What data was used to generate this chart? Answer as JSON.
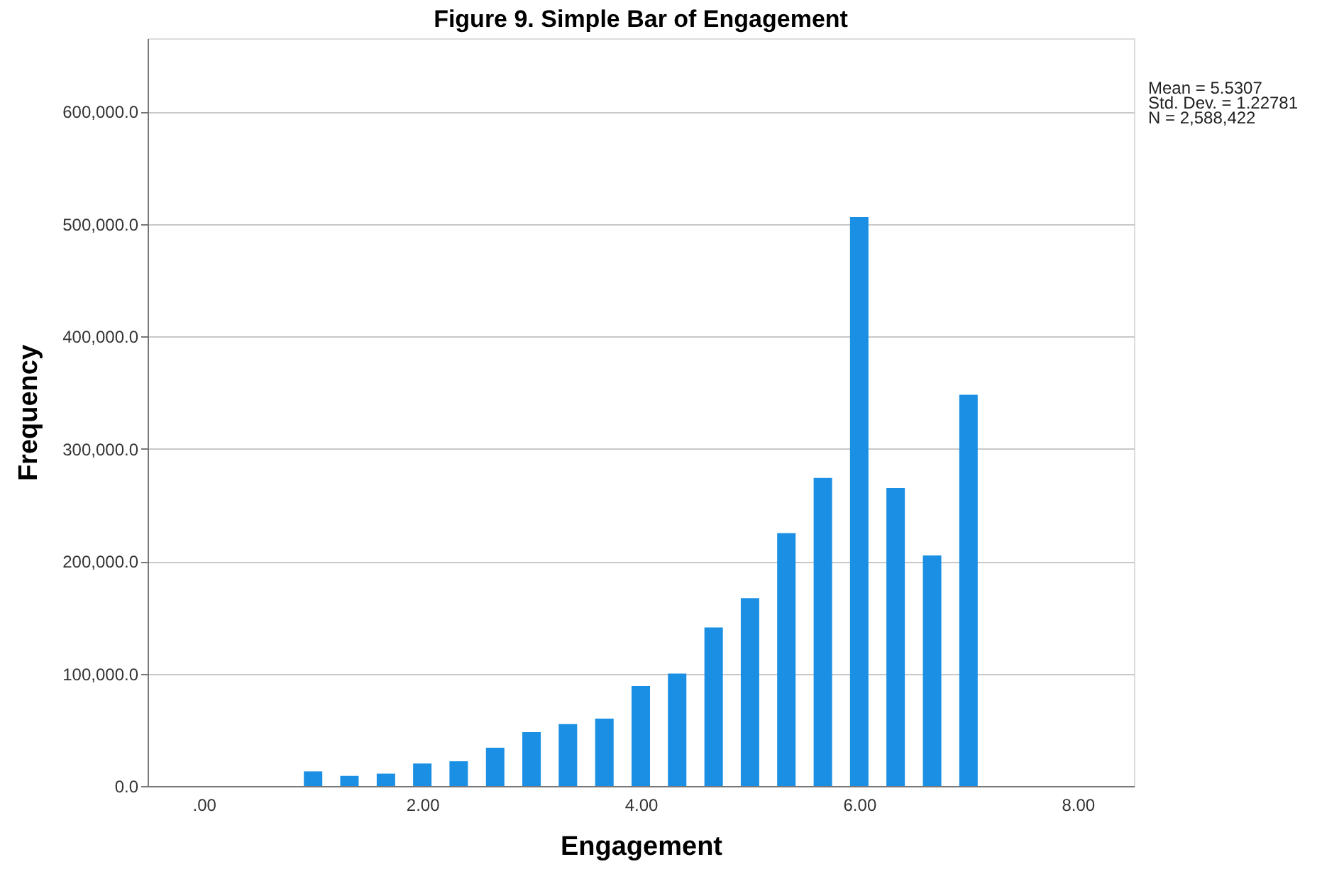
{
  "chart_data": {
    "type": "bar",
    "title": "Figure 9.  Simple Bar of Engagement",
    "xlabel": "Engagement",
    "ylabel": "Frequency",
    "x": [
      1.0,
      1.333,
      1.667,
      2.0,
      2.333,
      2.667,
      3.0,
      3.333,
      3.667,
      4.0,
      4.333,
      4.667,
      5.0,
      5.333,
      5.667,
      6.0,
      6.333,
      6.667,
      7.0
    ],
    "values": [
      13000,
      9000,
      11000,
      20000,
      22000,
      34000,
      48000,
      55000,
      60000,
      89000,
      100000,
      141000,
      167000,
      225000,
      274000,
      506000,
      265000,
      205000,
      348000
    ],
    "color": "#1a8fe3",
    "xlim": [
      -0.45,
      8.45
    ],
    "xticks": [
      {
        "value": 0,
        "label": ".00"
      },
      {
        "value": 2,
        "label": "2.00"
      },
      {
        "value": 4,
        "label": "4.00"
      },
      {
        "value": 6,
        "label": "6.00"
      },
      {
        "value": 8,
        "label": "8.00"
      }
    ],
    "ylim": [
      0,
      665000
    ],
    "yticks": [
      {
        "value": 0,
        "label": "0.0"
      },
      {
        "value": 100000,
        "label": "100,000.0"
      },
      {
        "value": 200000,
        "label": "200,000.0"
      },
      {
        "value": 300000,
        "label": "300,000.0"
      },
      {
        "value": 400000,
        "label": "400,000.0"
      },
      {
        "value": 500000,
        "label": "500,000.0"
      },
      {
        "value": 600000,
        "label": "600,000.0"
      }
    ],
    "grid": "y",
    "annotations": [
      "Mean = 5.5307",
      "Std. Dev. = 1.22781",
      "N = 2,588,422"
    ]
  }
}
